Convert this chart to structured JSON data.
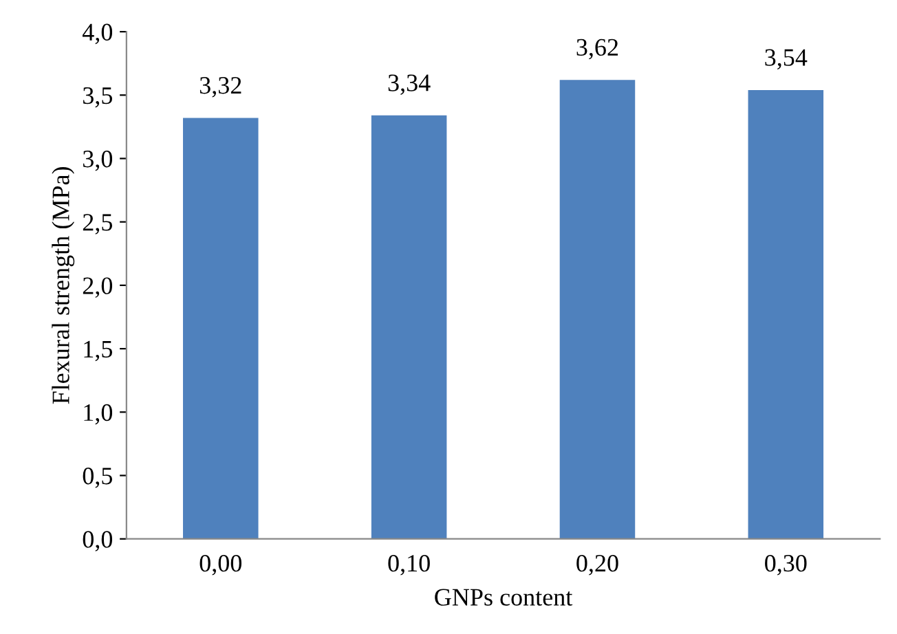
{
  "chart_data": {
    "type": "bar",
    "xlabel": "GNPs content",
    "ylabel": "Flexural strength (MPa)",
    "categories": [
      "0,00",
      "0,10",
      "0,20",
      "0,30"
    ],
    "values": [
      3.32,
      3.34,
      3.62,
      3.54
    ],
    "value_labels": [
      "3,32",
      "3,34",
      "3,62",
      "3,54"
    ],
    "color": "#4f81bd",
    "ylim": [
      0,
      4
    ],
    "yticks": [
      {
        "value": 0,
        "label": "0,0"
      },
      {
        "value": 0.5,
        "label": "0,5"
      },
      {
        "value": 1,
        "label": "1,0"
      },
      {
        "value": 1.5,
        "label": "1,5"
      },
      {
        "value": 2,
        "label": "2,0"
      },
      {
        "value": 2.5,
        "label": "2,5"
      },
      {
        "value": 3,
        "label": "3,0"
      },
      {
        "value": 3.5,
        "label": "3,5"
      },
      {
        "value": 4,
        "label": "4,0"
      }
    ],
    "grid": false
  }
}
